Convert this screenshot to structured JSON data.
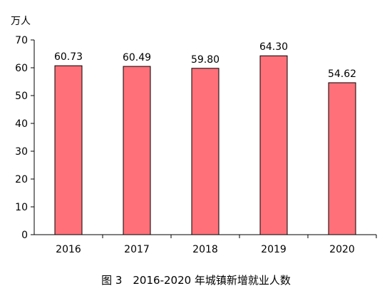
{
  "chart_data": {
    "type": "bar",
    "categories": [
      "2016",
      "2017",
      "2018",
      "2019",
      "2020"
    ],
    "values": [
      60.73,
      60.49,
      59.8,
      64.3,
      54.62
    ],
    "data_labels": [
      "60.73",
      "60.49",
      "59.80",
      "64.30",
      "54.62"
    ],
    "title": "图 3　2016-2020 年城镇新增就业人数",
    "ylabel": "万人",
    "xlabel": "",
    "ylim": [
      0,
      70
    ],
    "yticks": [
      0,
      10,
      20,
      30,
      40,
      50,
      60,
      70
    ],
    "grid": false,
    "legend": "none",
    "bar_color": "#ff7079"
  }
}
